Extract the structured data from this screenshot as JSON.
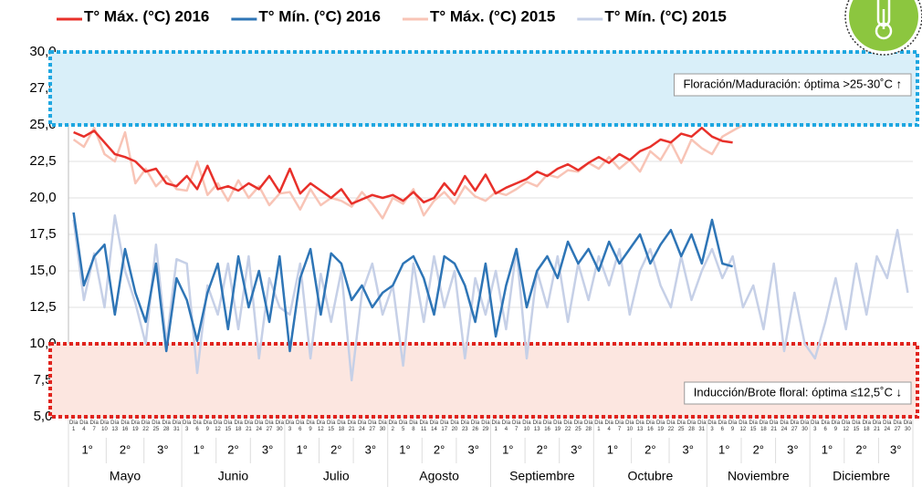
{
  "chart_data": {
    "type": "line",
    "legend": "top",
    "grid": true,
    "categories": [
      "Día 1",
      "Día 4",
      "Día 7",
      "Día 10",
      "Día 13",
      "Día 16",
      "Día 19",
      "Día 22",
      "Día 25",
      "Día 28",
      "Día 31",
      "Día 3",
      "Día 6",
      "Día 9",
      "Día 12",
      "Día 15",
      "Día 18",
      "Día 21",
      "Día 24",
      "Día 27",
      "Día 30",
      "Día 3",
      "Día 6",
      "Día 9",
      "Día 12",
      "Día 15",
      "Día 18",
      "Día 21",
      "Día 24",
      "Día 27",
      "Día 30",
      "Día 2",
      "Día 5",
      "Día 8",
      "Día 11",
      "Día 14",
      "Día 17",
      "Día 20",
      "Día 23",
      "Día 26",
      "Día 29",
      "Día 1",
      "Día 4",
      "Día 7",
      "Día 10",
      "Día 13",
      "Día 16",
      "Día 19",
      "Día 22",
      "Día 25",
      "Día 28",
      "Día 1",
      "Día 4",
      "Día 7",
      "Día 10",
      "Día 13",
      "Día 16",
      "Día 19",
      "Día 22",
      "Día 25",
      "Día 28",
      "Día 31",
      "Día 3",
      "Día 6",
      "Día 9",
      "Día 12",
      "Día 15",
      "Día 18",
      "Día 21",
      "Día 24",
      "Día 27",
      "Día 30",
      "Día 3",
      "Día 6",
      "Día 9",
      "Día 12",
      "Día 15",
      "Día 18",
      "Día 21",
      "Día 24",
      "Día 27",
      "Día 30"
    ],
    "months": [
      {
        "label": "Mayo",
        "decades": [
          "1°",
          "2°",
          "3°"
        ],
        "count": 11
      },
      {
        "label": "Junio",
        "decades": [
          "1°",
          "2°",
          "3°"
        ],
        "count": 10
      },
      {
        "label": "Julio",
        "decades": [
          "1°",
          "2°",
          "3°"
        ],
        "count": 10
      },
      {
        "label": "Agosto",
        "decades": [
          "1°",
          "2°",
          "3°"
        ],
        "count": 10
      },
      {
        "label": "Septiembre",
        "decades": [
          "1°",
          "2°",
          "3°"
        ],
        "count": 10
      },
      {
        "label": "Octubre",
        "decades": [
          "1°",
          "2°",
          "3°"
        ],
        "count": 11
      },
      {
        "label": "Noviembre",
        "decades": [
          "1°",
          "2°",
          "3°"
        ],
        "count": 10
      },
      {
        "label": "Diciembre",
        "decades": [
          "1°",
          "2°",
          "3°"
        ],
        "count": 10
      }
    ],
    "ylim": [
      5,
      30
    ],
    "yticks": [
      {
        "value": 5,
        "label": "5,0"
      },
      {
        "value": 7.5,
        "label": "7,5"
      },
      {
        "value": 10,
        "label": "10,0"
      },
      {
        "value": 12.5,
        "label": "12,5"
      },
      {
        "value": 15,
        "label": "15,0"
      },
      {
        "value": 17.5,
        "label": "17,5"
      },
      {
        "value": 20,
        "label": "20,0"
      },
      {
        "value": 22.5,
        "label": "22,5"
      },
      {
        "value": 25,
        "label": "25,0"
      },
      {
        "value": 27.5,
        "label": "27,5"
      },
      {
        "value": 30,
        "label": "30,0"
      }
    ],
    "bands": [
      {
        "label": "Floración/Maduración: óptima >25-30˚C ↑",
        "from": 25,
        "to": 30,
        "fill": "#d9eff9",
        "border": "#1ea7e1",
        "above_lines": true
      },
      {
        "label": "Inducción/Brote floral: óptima ≤12,5˚C ↓",
        "from": 5,
        "to": 10,
        "fill": "#fce6e0",
        "border": "#e0231c",
        "above_lines": false
      }
    ],
    "series": [
      {
        "name": "T° Mín. (°C) 2015",
        "color": "#c6d0e7",
        "width": 2.5,
        "values": [
          18.5,
          13.0,
          16.2,
          12.5,
          18.8,
          15.0,
          12.8,
          10.0,
          16.8,
          10.0,
          15.8,
          15.5,
          8.0,
          14.0,
          12.0,
          15.5,
          11.0,
          16.0,
          9.0,
          14.5,
          12.5,
          12.0,
          15.5,
          9.0,
          14.8,
          11.5,
          15.0,
          7.5,
          13.5,
          15.5,
          12.0,
          14.0,
          8.5,
          15.5,
          11.5,
          16.0,
          12.5,
          15.0,
          9.0,
          14.5,
          12.0,
          15.0,
          11.0,
          16.5,
          9.0,
          15.0,
          12.5,
          16.0,
          11.5,
          15.5,
          13.0,
          16.0,
          14.0,
          16.5,
          12.0,
          15.0,
          16.5,
          14.0,
          12.5,
          16.0,
          13.0,
          15.0,
          16.5,
          14.5,
          16.0,
          12.5,
          14.0,
          11.0,
          15.5,
          9.5,
          13.5,
          10.0,
          9.0,
          11.5,
          14.5,
          11.0,
          15.5,
          12.0,
          16.0,
          14.5,
          17.8,
          13.5
        ]
      },
      {
        "name": "T° Máx. (°C) 2015",
        "color": "#f8c4b6",
        "width": 2.5,
        "values": [
          24.0,
          23.5,
          24.8,
          23.0,
          22.5,
          24.5,
          21.0,
          22.0,
          20.8,
          21.5,
          20.6,
          20.5,
          22.5,
          20.2,
          21.0,
          19.8,
          21.2,
          20.0,
          20.8,
          19.5,
          20.3,
          20.4,
          19.2,
          20.6,
          19.5,
          20.0,
          19.8,
          19.4,
          20.4,
          19.6,
          18.6,
          20.0,
          19.6,
          20.6,
          18.8,
          19.8,
          20.4,
          19.6,
          20.8,
          20.1,
          19.8,
          20.4,
          20.2,
          20.6,
          21.1,
          20.8,
          21.6,
          21.4,
          21.9,
          21.8,
          22.4,
          22.0,
          22.8,
          22.0,
          22.6,
          21.8,
          23.2,
          22.6,
          23.8,
          22.4,
          24.0,
          23.4,
          23.0,
          24.2,
          24.6,
          25.0,
          25.5,
          25.8,
          26.2,
          26.0,
          26.5,
          26.8,
          27.0,
          26.8,
          27.3,
          27.0,
          27.5,
          27.2,
          27.8,
          27.5,
          27.9,
          27.6
        ]
      },
      {
        "name": "T° Mín. (°C) 2016",
        "color": "#2e75b6",
        "width": 2.5,
        "values": [
          19.0,
          14.0,
          16.0,
          16.8,
          12.0,
          16.5,
          13.5,
          11.5,
          15.5,
          9.5,
          14.5,
          13.0,
          10.2,
          13.5,
          15.5,
          11.0,
          16.0,
          12.5,
          15.0,
          11.5,
          16.0,
          9.5,
          14.5,
          16.5,
          12.0,
          16.2,
          15.5,
          13.0,
          14.0,
          12.5,
          13.5,
          14.0,
          15.5,
          16.0,
          14.5,
          12.0,
          16.0,
          15.5,
          14.0,
          11.5,
          15.5,
          10.5,
          14.0,
          16.5,
          12.5,
          15.0,
          16.0,
          14.5,
          17.0,
          15.5,
          16.5,
          15.0,
          17.0,
          15.5,
          16.5,
          17.5,
          15.5,
          16.8,
          17.8,
          16.0,
          17.5,
          15.5,
          18.5,
          15.5,
          15.3,
          null,
          null,
          null,
          null,
          null,
          null,
          null,
          null,
          null,
          null,
          null,
          null,
          null,
          null,
          null,
          null,
          null
        ]
      },
      {
        "name": "T° Máx. (°C) 2016",
        "color": "#e8302a",
        "width": 2.5,
        "values": [
          24.5,
          24.2,
          24.6,
          23.8,
          23.0,
          22.8,
          22.5,
          21.8,
          22.0,
          21.0,
          20.8,
          21.5,
          20.6,
          22.2,
          20.6,
          20.8,
          20.5,
          21.0,
          20.6,
          21.5,
          20.4,
          22.0,
          20.3,
          21.0,
          20.5,
          20.0,
          20.6,
          19.6,
          19.9,
          20.2,
          20.0,
          20.2,
          19.8,
          20.4,
          19.7,
          20.0,
          21.0,
          20.2,
          21.5,
          20.5,
          21.6,
          20.3,
          20.7,
          21.0,
          21.3,
          21.8,
          21.5,
          22.0,
          22.3,
          21.9,
          22.4,
          22.8,
          22.4,
          23.0,
          22.6,
          23.2,
          23.5,
          24.0,
          23.8,
          24.4,
          24.2,
          24.8,
          24.2,
          23.9,
          23.8,
          null,
          null,
          null,
          null,
          null,
          null,
          null,
          null,
          null,
          null,
          null,
          null,
          null,
          null,
          null,
          null,
          null
        ]
      }
    ],
    "legend_order": [
      3,
      2,
      1,
      0
    ]
  }
}
